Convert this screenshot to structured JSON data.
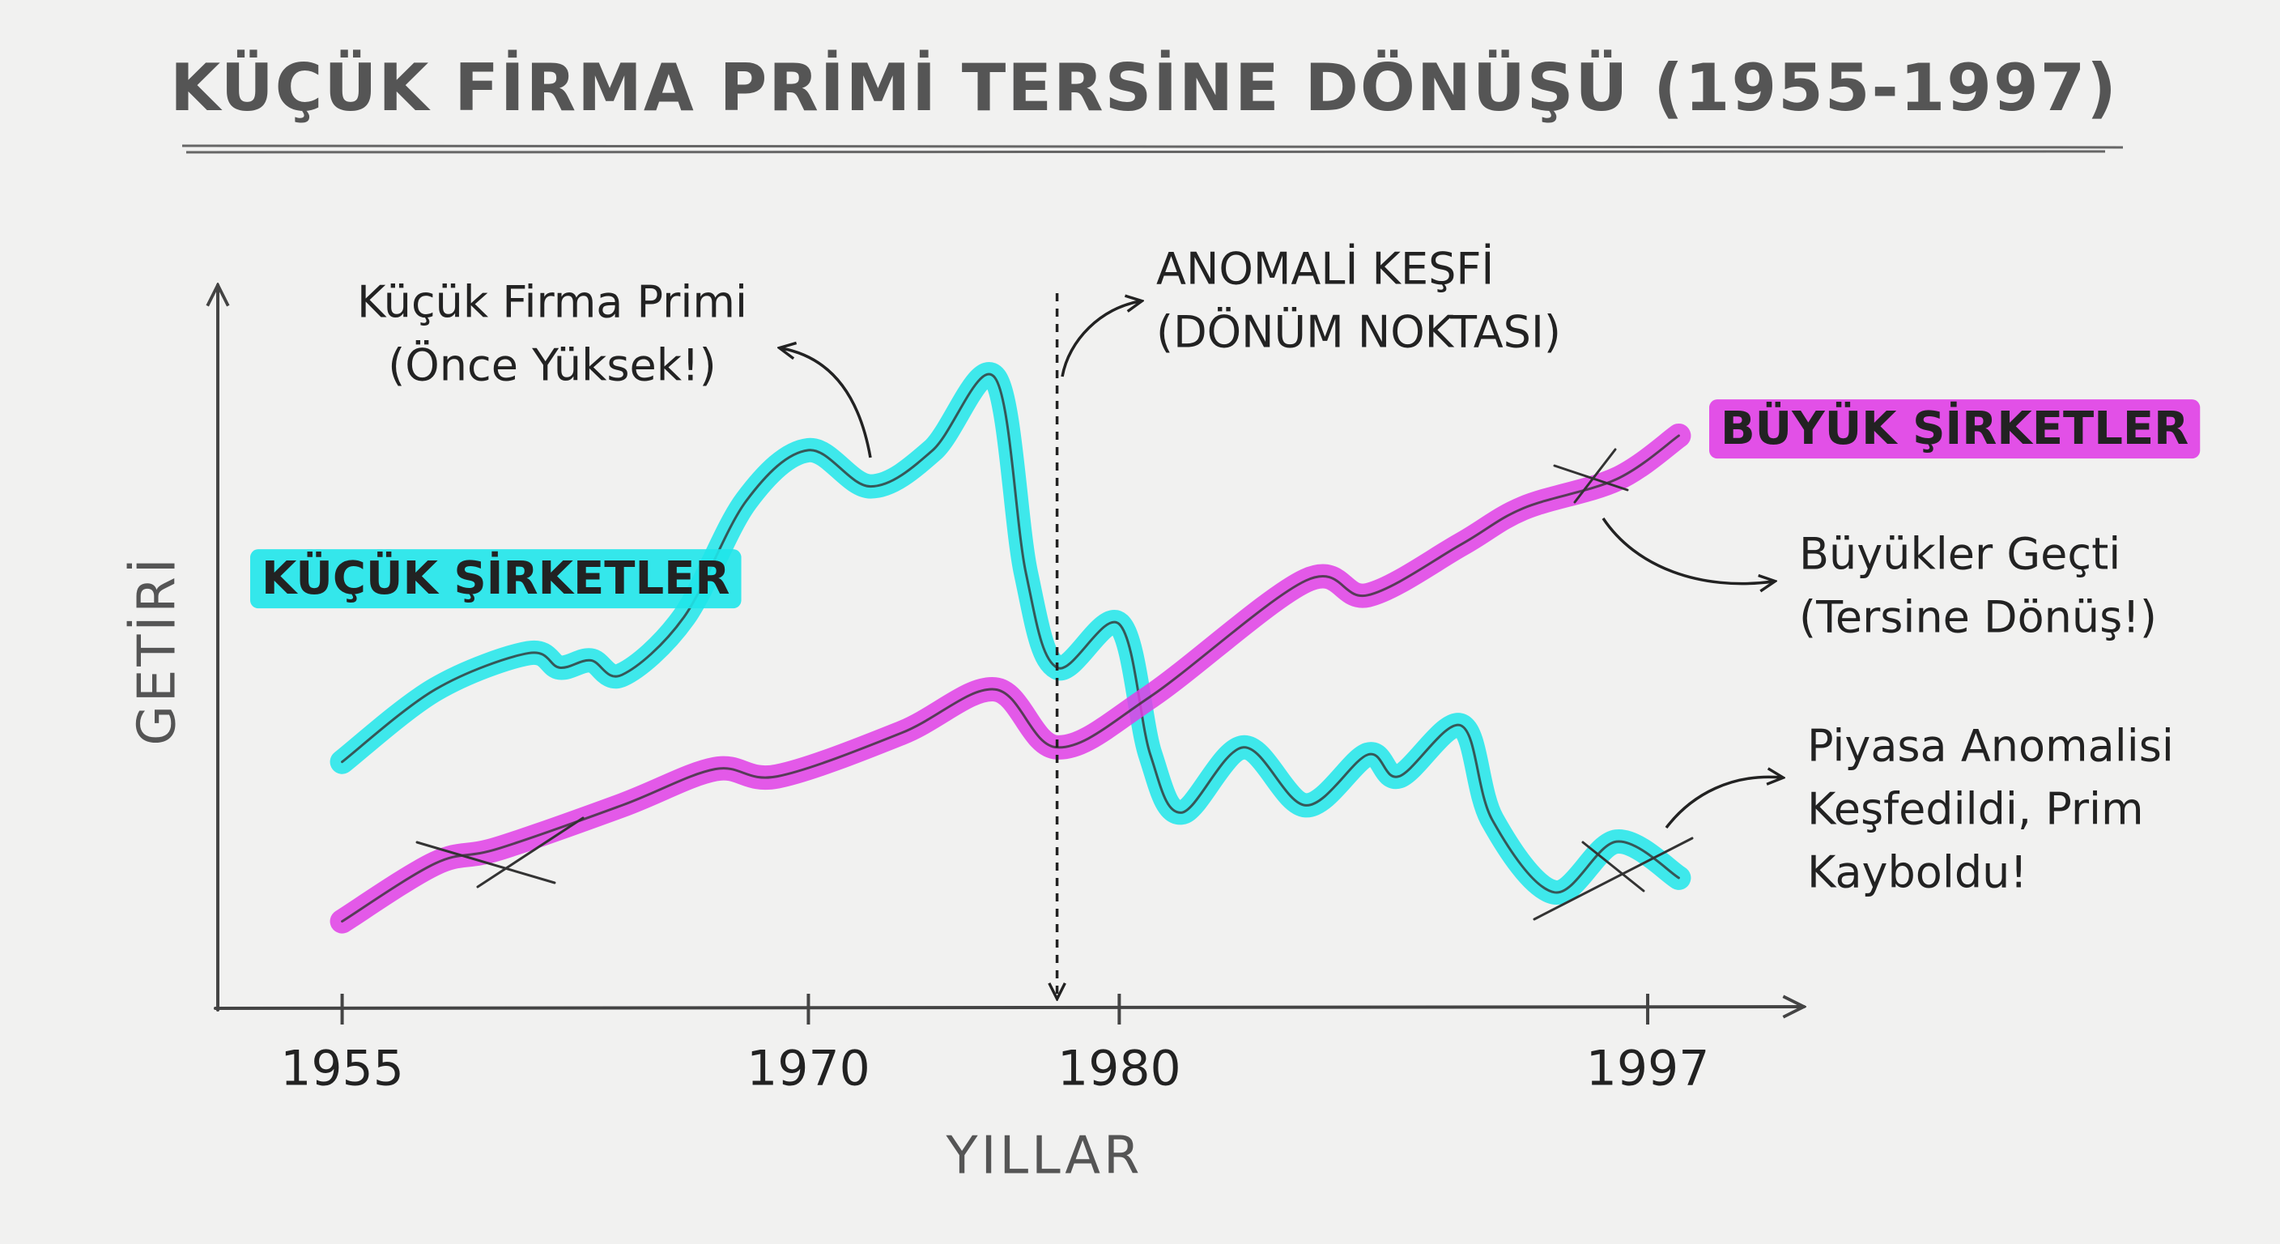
{
  "chart_data": {
    "type": "line",
    "title": "KÜÇÜK FİRMA PRİMİ TERSİNE DÖNÜŞÜ (1955-1997)",
    "x_label": "YILLAR",
    "y_label": "GETİRİ",
    "xlim": [
      1951,
      2002
    ],
    "xticks": [
      1955,
      1970,
      1980,
      1997
    ],
    "ylim": [
      0,
      100
    ],
    "series": [
      {
        "name": "KÜÇÜK ŞİRKETLER",
        "color": "#1fe6ea",
        "x": [
          1955,
          1958,
          1961,
          1962,
          1963,
          1964,
          1966,
          1968,
          1970,
          1972,
          1974,
          1976,
          1977,
          1978,
          1980,
          1981,
          1982,
          1984,
          1986,
          1988,
          1989,
          1991,
          1992,
          1994,
          1996,
          1998
        ],
        "values": [
          34,
          44,
          49,
          47,
          48,
          46,
          54,
          70,
          77,
          72,
          77,
          87,
          60,
          47,
          53,
          35,
          27,
          36,
          28,
          35,
          32,
          39,
          26,
          16,
          23,
          18
        ]
      },
      {
        "name": "BÜYÜK ŞİRKETLER",
        "color": "#e03ee6",
        "x": [
          1955,
          1958,
          1960,
          1964,
          1967,
          1969,
          1973,
          1976,
          1978,
          1981,
          1986,
          1988,
          1991,
          1993,
          1996,
          1998
        ],
        "values": [
          12,
          20,
          22,
          28,
          33,
          32,
          38,
          44,
          36,
          43,
          59,
          57,
          64,
          69,
          73,
          79
        ]
      }
    ],
    "annotations": [
      {
        "lines": [
          "Küçük Firma Primi",
          "(Önce Yüksek!)"
        ]
      },
      {
        "lines": [
          "ANOMALİ KEŞFİ",
          "(DÖNÜM NOKTASI)"
        ],
        "x": 1978
      },
      {
        "lines": [
          "Büyükler Geçti",
          "(Tersine Dönüş!)"
        ]
      },
      {
        "lines": [
          "Piyasa Anomalisi",
          "Keşfedildi, Prim",
          "Kayboldu!"
        ]
      }
    ]
  }
}
